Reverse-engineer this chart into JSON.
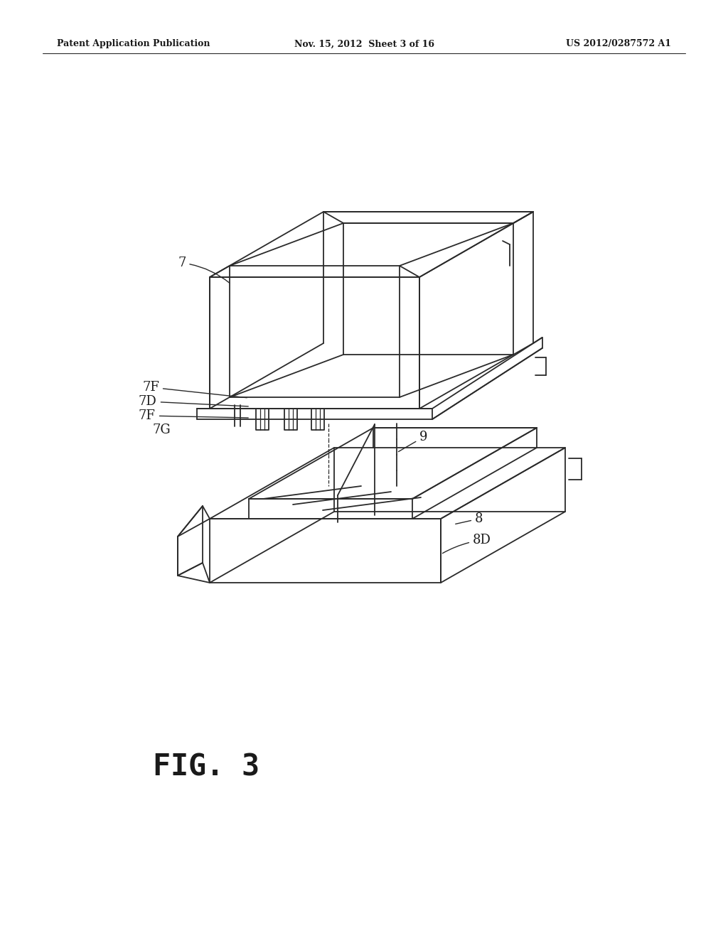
{
  "background_color": "#ffffff",
  "header_left": "Patent Application Publication",
  "header_center": "Nov. 15, 2012  Sheet 3 of 16",
  "header_right": "US 2012/0287572 A1",
  "figure_label": "FIG. 3",
  "line_color": "#2a2a2a",
  "lw": 1.3,
  "header_fontsize": 9,
  "fig_label_fontsize": 30,
  "label_fontsize": 13
}
